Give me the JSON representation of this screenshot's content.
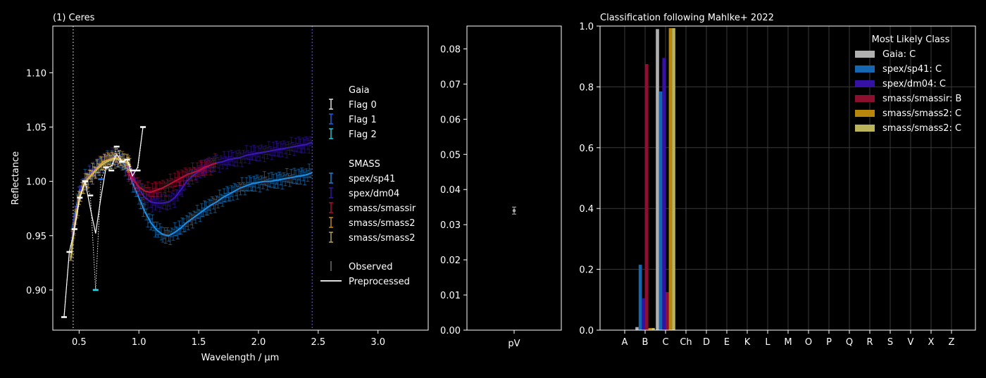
{
  "colors": {
    "background": "#000000",
    "foreground": "#ffffff",
    "grid": "#3a3a3a",
    "gaia_flag0": "#ffffff",
    "gaia_flag1": "#1f6fff",
    "gaia_flag2": "#27e1f0",
    "spex_sp41": "#1e8fe6",
    "spex_dm04": "#3c18b8",
    "smass_smassir": "#c0103a",
    "smass_smass2_a": "#d99a1a",
    "smass_smass2_b": "#c9b95f",
    "gaia_bar": "#b0b0b0",
    "sp41_bar": "#1467b0",
    "dm04_bar": "#3512a3",
    "smassir_bar": "#8d0f2f",
    "smass2a_bar": "#b8860b",
    "smass2b_bar": "#bcb45a",
    "preprocessed_line": "#ffffff",
    "observed_marker": "#808080",
    "bandpass_line_a": "#b0b0b0",
    "bandpass_line_b": "#5a4cff"
  },
  "chart_data": [
    {
      "type": "line",
      "title": "(1) Ceres",
      "xlabel": "Wavelength / μm",
      "ylabel": "Reflectance",
      "xlim": [
        0.28,
        3.42
      ],
      "ylim": [
        0.863,
        1.143
      ],
      "xticks": [
        "0.5",
        "1.0",
        "1.5",
        "2.0",
        "2.5",
        "3.0"
      ],
      "yticks": [
        "0.90",
        "0.95",
        "1.00",
        "1.05",
        "1.10"
      ],
      "grid": false,
      "vlines": [
        0.45,
        2.45
      ],
      "legend": {
        "placement": "right",
        "gaia_title": "Gaia",
        "gaia_items": [
          "Flag 0",
          "Flag 1",
          "Flag 2"
        ],
        "smass_title": "SMASS",
        "smass_items": [
          "spex/sp41",
          "spex/dm04",
          "smass/smassir",
          "smass/smass2",
          "smass/smass2"
        ],
        "observed_label": "Observed",
        "preprocessed_label": "Preprocessed"
      },
      "gaia_points": [
        {
          "x": 0.374,
          "y": 0.875,
          "flag": 0
        },
        {
          "x": 0.418,
          "y": 0.935,
          "flag": 0
        },
        {
          "x": 0.462,
          "y": 0.956,
          "flag": 0
        },
        {
          "x": 0.506,
          "y": 0.985,
          "flag": 0
        },
        {
          "x": 0.55,
          "y": 1.0,
          "flag": 0
        },
        {
          "x": 0.594,
          "y": 0.987,
          "flag": 0
        },
        {
          "x": 0.638,
          "y": 0.9,
          "flag": 2
        },
        {
          "x": 0.682,
          "y": 1.002,
          "flag": 1
        },
        {
          "x": 0.726,
          "y": 1.013,
          "flag": 0
        },
        {
          "x": 0.77,
          "y": 1.01,
          "flag": 0
        },
        {
          "x": 0.814,
          "y": 1.032,
          "flag": 0
        },
        {
          "x": 0.858,
          "y": 1.018,
          "flag": 0
        },
        {
          "x": 0.902,
          "y": 1.02,
          "flag": 0
        },
        {
          "x": 0.946,
          "y": 1.01,
          "flag": 0
        },
        {
          "x": 0.99,
          "y": 1.01,
          "flag": 0
        },
        {
          "x": 1.034,
          "y": 1.05,
          "flag": 0
        }
      ],
      "series": [
        {
          "name": "spex/sp41",
          "x": [
            0.44,
            0.5,
            0.55,
            0.6,
            0.65,
            0.7,
            0.75,
            0.8,
            0.85,
            0.9,
            0.95,
            1.0,
            1.05,
            1.1,
            1.15,
            1.2,
            1.25,
            1.3,
            1.35,
            1.4,
            1.45,
            1.5,
            1.55,
            1.6,
            1.65,
            1.7,
            1.75,
            1.8,
            1.85,
            1.9,
            1.95,
            2.0,
            2.05,
            2.1,
            2.15,
            2.2,
            2.25,
            2.3,
            2.35,
            2.4,
            2.45
          ],
          "y": [
            0.955,
            0.99,
            1.002,
            1.008,
            1.012,
            1.017,
            1.02,
            1.022,
            1.02,
            1.012,
            0.998,
            0.985,
            0.972,
            0.962,
            0.955,
            0.951,
            0.95,
            0.953,
            0.957,
            0.962,
            0.966,
            0.97,
            0.974,
            0.978,
            0.981,
            0.985,
            0.988,
            0.991,
            0.994,
            0.996,
            0.998,
            0.999,
            1.0,
            1.0,
            1.001,
            1.002,
            1.003,
            1.004,
            1.005,
            1.006,
            1.008
          ]
        },
        {
          "name": "spex/dm04",
          "x": [
            0.44,
            0.5,
            0.55,
            0.6,
            0.65,
            0.7,
            0.75,
            0.8,
            0.85,
            0.9,
            0.95,
            1.0,
            1.05,
            1.1,
            1.15,
            1.2,
            1.25,
            1.3,
            1.35,
            1.4,
            1.45,
            1.5,
            1.55,
            1.6,
            1.65,
            1.7,
            1.75,
            1.8,
            1.85,
            1.9,
            1.95,
            2.0,
            2.05,
            2.1,
            2.15,
            2.2,
            2.25,
            2.3,
            2.35,
            2.4,
            2.45
          ],
          "y": [
            0.952,
            0.988,
            1.001,
            1.008,
            1.013,
            1.018,
            1.021,
            1.023,
            1.02,
            1.015,
            1.005,
            0.993,
            0.985,
            0.981,
            0.98,
            0.98,
            0.981,
            0.985,
            0.992,
            1.0,
            1.005,
            1.009,
            1.012,
            1.015,
            1.017,
            1.018,
            1.02,
            1.021,
            1.022,
            1.024,
            1.025,
            1.026,
            1.027,
            1.028,
            1.029,
            1.03,
            1.031,
            1.032,
            1.033,
            1.034,
            1.036
          ]
        },
        {
          "name": "smass/smassir",
          "x": [
            0.9,
            0.95,
            1.0,
            1.05,
            1.1,
            1.15,
            1.2,
            1.25,
            1.3,
            1.35,
            1.4,
            1.45,
            1.5,
            1.55,
            1.6,
            1.65
          ],
          "y": [
            1.01,
            1.002,
            0.995,
            0.991,
            0.99,
            0.992,
            0.994,
            0.997,
            1.0,
            1.003,
            1.006,
            1.008,
            1.01,
            1.013,
            1.015,
            1.017
          ]
        },
        {
          "name": "smass/smass2",
          "x": [
            0.43,
            0.46,
            0.5,
            0.55,
            0.6,
            0.65,
            0.7,
            0.75,
            0.8,
            0.85,
            0.9,
            0.93
          ],
          "y": [
            0.93,
            0.96,
            0.985,
            1.0,
            1.006,
            1.012,
            1.018,
            1.02,
            1.022,
            1.02,
            1.018,
            1.015
          ]
        },
        {
          "name": "smass/smass2",
          "x": [
            0.43,
            0.46,
            0.5,
            0.55,
            0.6,
            0.65,
            0.7,
            0.75,
            0.8,
            0.85,
            0.9,
            0.93
          ],
          "y": [
            0.928,
            0.957,
            0.983,
            0.999,
            1.005,
            1.011,
            1.016,
            1.019,
            1.021,
            1.019,
            1.017,
            1.014
          ]
        }
      ],
      "preprocessed_gaia": {
        "x": [
          0.374,
          0.418,
          0.462,
          0.506,
          0.55,
          0.594,
          0.638,
          0.682,
          0.726,
          0.77,
          0.814,
          0.858,
          0.902,
          0.946,
          0.99,
          1.034
        ],
        "y": [
          0.875,
          0.935,
          0.956,
          0.985,
          1.0,
          0.975,
          0.952,
          0.985,
          1.013,
          1.014,
          1.025,
          1.018,
          1.02,
          1.005,
          1.013,
          1.05
        ]
      }
    },
    {
      "type": "scatter",
      "xlabel": "pV",
      "ylim": [
        0,
        0.0865
      ],
      "yticks": [
        "0.00",
        "0.01",
        "0.02",
        "0.03",
        "0.04",
        "0.05",
        "0.06",
        "0.07",
        "0.08"
      ],
      "value": 0.034,
      "error": 0.001
    },
    {
      "type": "bar",
      "title": "Classification following Mahlke+ 2022",
      "categories": [
        "A",
        "B",
        "C",
        "Ch",
        "D",
        "E",
        "K",
        "L",
        "M",
        "O",
        "P",
        "Q",
        "R",
        "S",
        "V",
        "X",
        "Z"
      ],
      "ylim": [
        0,
        1.0
      ],
      "yticks": [
        "0.0",
        "0.2",
        "0.4",
        "0.6",
        "0.8",
        "1.0"
      ],
      "grid": true,
      "legend_title": "Most Likely Class",
      "legend_placement": "top-right",
      "series": [
        {
          "name": "Gaia: C",
          "values": [
            0,
            0.01,
            0.99,
            0,
            0,
            0,
            0,
            0,
            0,
            0,
            0,
            0,
            0,
            0,
            0,
            0,
            0
          ]
        },
        {
          "name": "spex/sp41: C",
          "values": [
            0,
            0.215,
            0.785,
            0,
            0,
            0,
            0,
            0,
            0,
            0,
            0,
            0,
            0,
            0,
            0,
            0,
            0
          ]
        },
        {
          "name": "spex/dm04: C",
          "values": [
            0,
            0.105,
            0.895,
            0,
            0,
            0,
            0,
            0,
            0,
            0,
            0,
            0,
            0,
            0,
            0,
            0,
            0
          ]
        },
        {
          "name": "smass/smassir: B",
          "values": [
            0,
            0.875,
            0.125,
            0,
            0,
            0,
            0,
            0,
            0,
            0,
            0,
            0,
            0,
            0,
            0,
            0,
            0
          ]
        },
        {
          "name": "smass/smass2: C",
          "values": [
            0,
            0.007,
            0.993,
            0,
            0,
            0,
            0,
            0,
            0,
            0,
            0,
            0,
            0,
            0,
            0,
            0,
            0
          ]
        },
        {
          "name": "smass/smass2: C",
          "values": [
            0,
            0.007,
            0.993,
            0,
            0,
            0,
            0,
            0,
            0,
            0,
            0,
            0,
            0,
            0,
            0,
            0,
            0
          ]
        }
      ]
    }
  ]
}
